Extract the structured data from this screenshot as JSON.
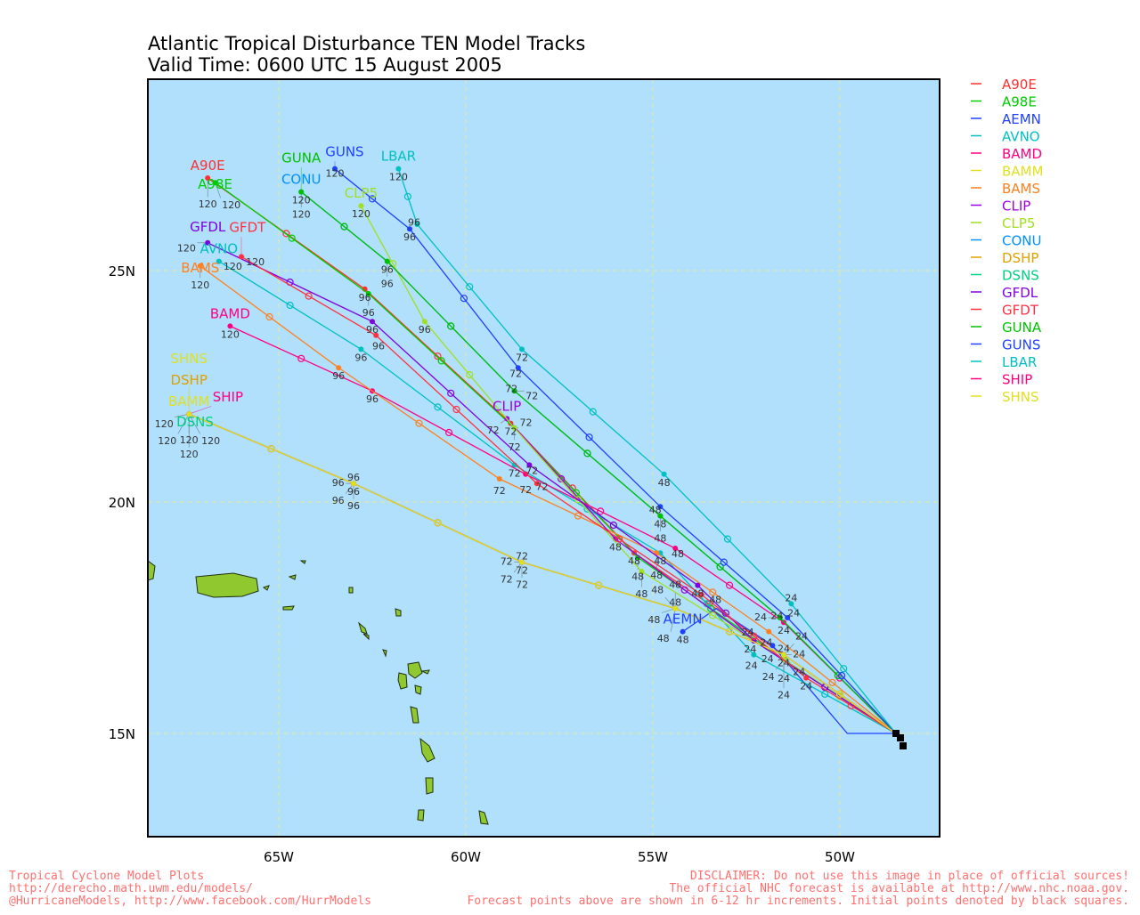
{
  "title": {
    "line1": "Atlantic Tropical Disturbance TEN Model Tracks",
    "line2": "Valid Time: 0600 UTC 15 August 2005"
  },
  "footer": {
    "left": [
      "Tropical Cyclone Model Plots",
      "http://derecho.math.uwm.edu/models/",
      "@HurricaneModels, http://www.facebook.com/HurrModels"
    ],
    "right": [
      "DISCLAIMER: Do not use this image in place of official sources!",
      "The official NHC forecast is available at http://www.nhc.noaa.gov.",
      "Forecast points above are shown in 6-12 hr increments. Initial points denoted by black squares."
    ]
  },
  "colors": {
    "ocean": "#b0e0fc",
    "land": "#90c830",
    "grid": "#e8e8a0",
    "footer": "#ff7070"
  },
  "chart_data": {
    "type": "map-tracks",
    "x_axis": {
      "ticks": [
        "65W",
        "60W",
        "55W",
        "50W"
      ],
      "tick_values": [
        65,
        60,
        55,
        50
      ],
      "range_lonW": [
        68.5,
        47.3
      ]
    },
    "y_axis": {
      "ticks": [
        "25N",
        "20N",
        "15N"
      ],
      "tick_values": [
        25,
        20,
        15
      ],
      "range_lat": [
        12.8,
        29.1
      ]
    },
    "grid": true,
    "legend": "right",
    "initial_position": [
      48.5,
      15.0
    ],
    "series": [
      {
        "name": "A90E",
        "color": "#ff3030",
        "points": [
          [
            0,
            48.5,
            15.0
          ],
          [
            24,
            51.5,
            16.7
          ],
          [
            48,
            55.5,
            18.9
          ],
          [
            72,
            58.8,
            21.7
          ],
          [
            96,
            62.7,
            24.6
          ],
          [
            120,
            66.9,
            27.0
          ]
        ]
      },
      {
        "name": "A98E",
        "color": "#00cc00",
        "points": [
          [
            0,
            48.5,
            15.0
          ],
          [
            24,
            51.5,
            16.6
          ],
          [
            48,
            55.4,
            18.8
          ],
          [
            72,
            58.7,
            21.6
          ],
          [
            96,
            62.6,
            24.5
          ],
          [
            120,
            66.7,
            26.9
          ]
        ]
      },
      {
        "name": "AEMN",
        "color": "#2040ff",
        "points": [
          [
            0,
            48.5,
            15.0
          ],
          [
            12,
            49.8,
            15.0
          ],
          [
            24,
            51.8,
            16.9
          ],
          [
            36,
            53.3,
            17.7
          ],
          [
            48,
            54.2,
            17.2
          ]
        ]
      },
      {
        "name": "AVNO",
        "color": "#00c0c0",
        "points": [
          [
            0,
            48.5,
            15.0
          ],
          [
            24,
            52.3,
            16.7
          ],
          [
            48,
            54.8,
            18.9
          ],
          [
            72,
            58.7,
            20.8
          ],
          [
            96,
            62.8,
            23.3
          ],
          [
            120,
            66.6,
            25.2
          ]
        ]
      },
      {
        "name": "BAMD",
        "color": "#ff0080",
        "points": [
          [
            0,
            48.5,
            15.0
          ],
          [
            24,
            51.5,
            17.4
          ],
          [
            48,
            54.4,
            19.0
          ],
          [
            72,
            58.4,
            20.6
          ],
          [
            96,
            62.5,
            22.4
          ],
          [
            120,
            66.3,
            23.8
          ]
        ]
      },
      {
        "name": "BAMM",
        "color": "#e0e020",
        "points": [
          [
            0,
            48.5,
            15.0
          ],
          [
            24,
            51.5,
            16.7
          ],
          [
            48,
            54.4,
            17.7
          ],
          [
            72,
            58.5,
            18.7
          ],
          [
            96,
            63.0,
            20.4
          ],
          [
            120,
            67.4,
            21.9
          ]
        ]
      },
      {
        "name": "BAMS",
        "color": "#ff8020",
        "points": [
          [
            0,
            48.5,
            15.0
          ],
          [
            24,
            51.9,
            17.2
          ],
          [
            48,
            54.9,
            18.9
          ],
          [
            72,
            59.1,
            20.5
          ],
          [
            96,
            63.4,
            22.9
          ],
          [
            120,
            67.1,
            25.1
          ]
        ]
      },
      {
        "name": "CLIP",
        "color": "#a000e0",
        "points": [
          [
            0,
            48.5,
            15.0
          ],
          [
            24,
            52.3,
            17.0
          ],
          [
            48,
            56.0,
            19.2
          ],
          [
            72,
            58.9,
            21.8
          ]
        ]
      },
      {
        "name": "CLP5",
        "color": "#a0e020",
        "points": [
          [
            0,
            48.5,
            15.0
          ],
          [
            24,
            51.5,
            16.6
          ],
          [
            48,
            55.3,
            18.5
          ],
          [
            72,
            58.7,
            21.6
          ],
          [
            96,
            61.1,
            23.9
          ],
          [
            120,
            62.8,
            26.4
          ]
        ]
      },
      {
        "name": "CONU",
        "color": "#0090ff",
        "points": [
          [
            0,
            48.5,
            15.0
          ],
          [
            24,
            51.6,
            17.5
          ],
          [
            48,
            54.8,
            19.7
          ],
          [
            72,
            58.7,
            22.4
          ],
          [
            96,
            62.1,
            25.2
          ],
          [
            120,
            64.4,
            26.7
          ]
        ]
      },
      {
        "name": "DSHP",
        "color": "#e0a000",
        "points": [
          [
            0,
            48.5,
            15.0
          ],
          [
            24,
            51.5,
            16.7
          ],
          [
            48,
            54.4,
            17.7
          ],
          [
            72,
            58.5,
            18.7
          ],
          [
            96,
            63.0,
            20.4
          ],
          [
            120,
            67.4,
            21.9
          ]
        ]
      },
      {
        "name": "DSNS",
        "color": "#00d080",
        "points": [
          [
            0,
            48.5,
            15.0
          ],
          [
            24,
            51.5,
            16.7
          ],
          [
            48,
            54.4,
            17.7
          ],
          [
            72,
            58.5,
            18.7
          ],
          [
            96,
            63.0,
            20.4
          ],
          [
            120,
            67.4,
            21.9
          ]
        ]
      },
      {
        "name": "GFDL",
        "color": "#8000e0",
        "points": [
          [
            0,
            48.5,
            15.0
          ],
          [
            24,
            52.3,
            17.0
          ],
          [
            48,
            53.8,
            18.2
          ],
          [
            72,
            58.3,
            20.8
          ],
          [
            96,
            62.5,
            23.9
          ],
          [
            120,
            66.9,
            25.6
          ]
        ]
      },
      {
        "name": "GFDT",
        "color": "#ff3040",
        "points": [
          [
            0,
            48.5,
            15.0
          ],
          [
            24,
            50.9,
            16.2
          ],
          [
            48,
            53.7,
            18.0
          ],
          [
            72,
            58.1,
            20.4
          ],
          [
            96,
            62.4,
            23.6
          ],
          [
            120,
            66.0,
            25.3
          ]
        ]
      },
      {
        "name": "GUNA",
        "color": "#00c000",
        "points": [
          [
            0,
            48.5,
            15.0
          ],
          [
            24,
            51.6,
            17.5
          ],
          [
            48,
            54.8,
            19.7
          ],
          [
            72,
            58.7,
            22.4
          ],
          [
            96,
            62.1,
            25.2
          ],
          [
            120,
            64.4,
            26.7
          ]
        ]
      },
      {
        "name": "GUNS",
        "color": "#2040ff",
        "points": [
          [
            0,
            48.5,
            15.0
          ],
          [
            24,
            51.4,
            17.5
          ],
          [
            48,
            54.8,
            19.9
          ],
          [
            72,
            58.6,
            22.9
          ],
          [
            96,
            61.5,
            25.9
          ],
          [
            120,
            63.5,
            27.2
          ]
        ]
      },
      {
        "name": "LBAR",
        "color": "#00c0c0",
        "points": [
          [
            0,
            48.5,
            15.0
          ],
          [
            24,
            51.3,
            17.8
          ],
          [
            48,
            54.7,
            20.6
          ],
          [
            72,
            58.5,
            23.3
          ],
          [
            96,
            61.3,
            26.0
          ],
          [
            120,
            61.8,
            27.2
          ]
        ]
      },
      {
        "name": "SHIP",
        "color": "#ff0080",
        "points": [
          [
            0,
            48.5,
            15.0
          ],
          [
            24,
            51.5,
            16.7
          ],
          [
            48,
            54.4,
            17.7
          ],
          [
            72,
            58.5,
            18.7
          ],
          [
            96,
            63.0,
            20.4
          ],
          [
            120,
            67.4,
            21.9
          ]
        ]
      },
      {
        "name": "SHNS",
        "color": "#e0e020",
        "points": [
          [
            0,
            48.5,
            15.0
          ],
          [
            24,
            51.5,
            16.7
          ],
          [
            48,
            54.4,
            17.7
          ],
          [
            72,
            58.5,
            18.7
          ],
          [
            96,
            63.0,
            20.4
          ],
          [
            120,
            67.4,
            21.9
          ]
        ]
      }
    ]
  }
}
